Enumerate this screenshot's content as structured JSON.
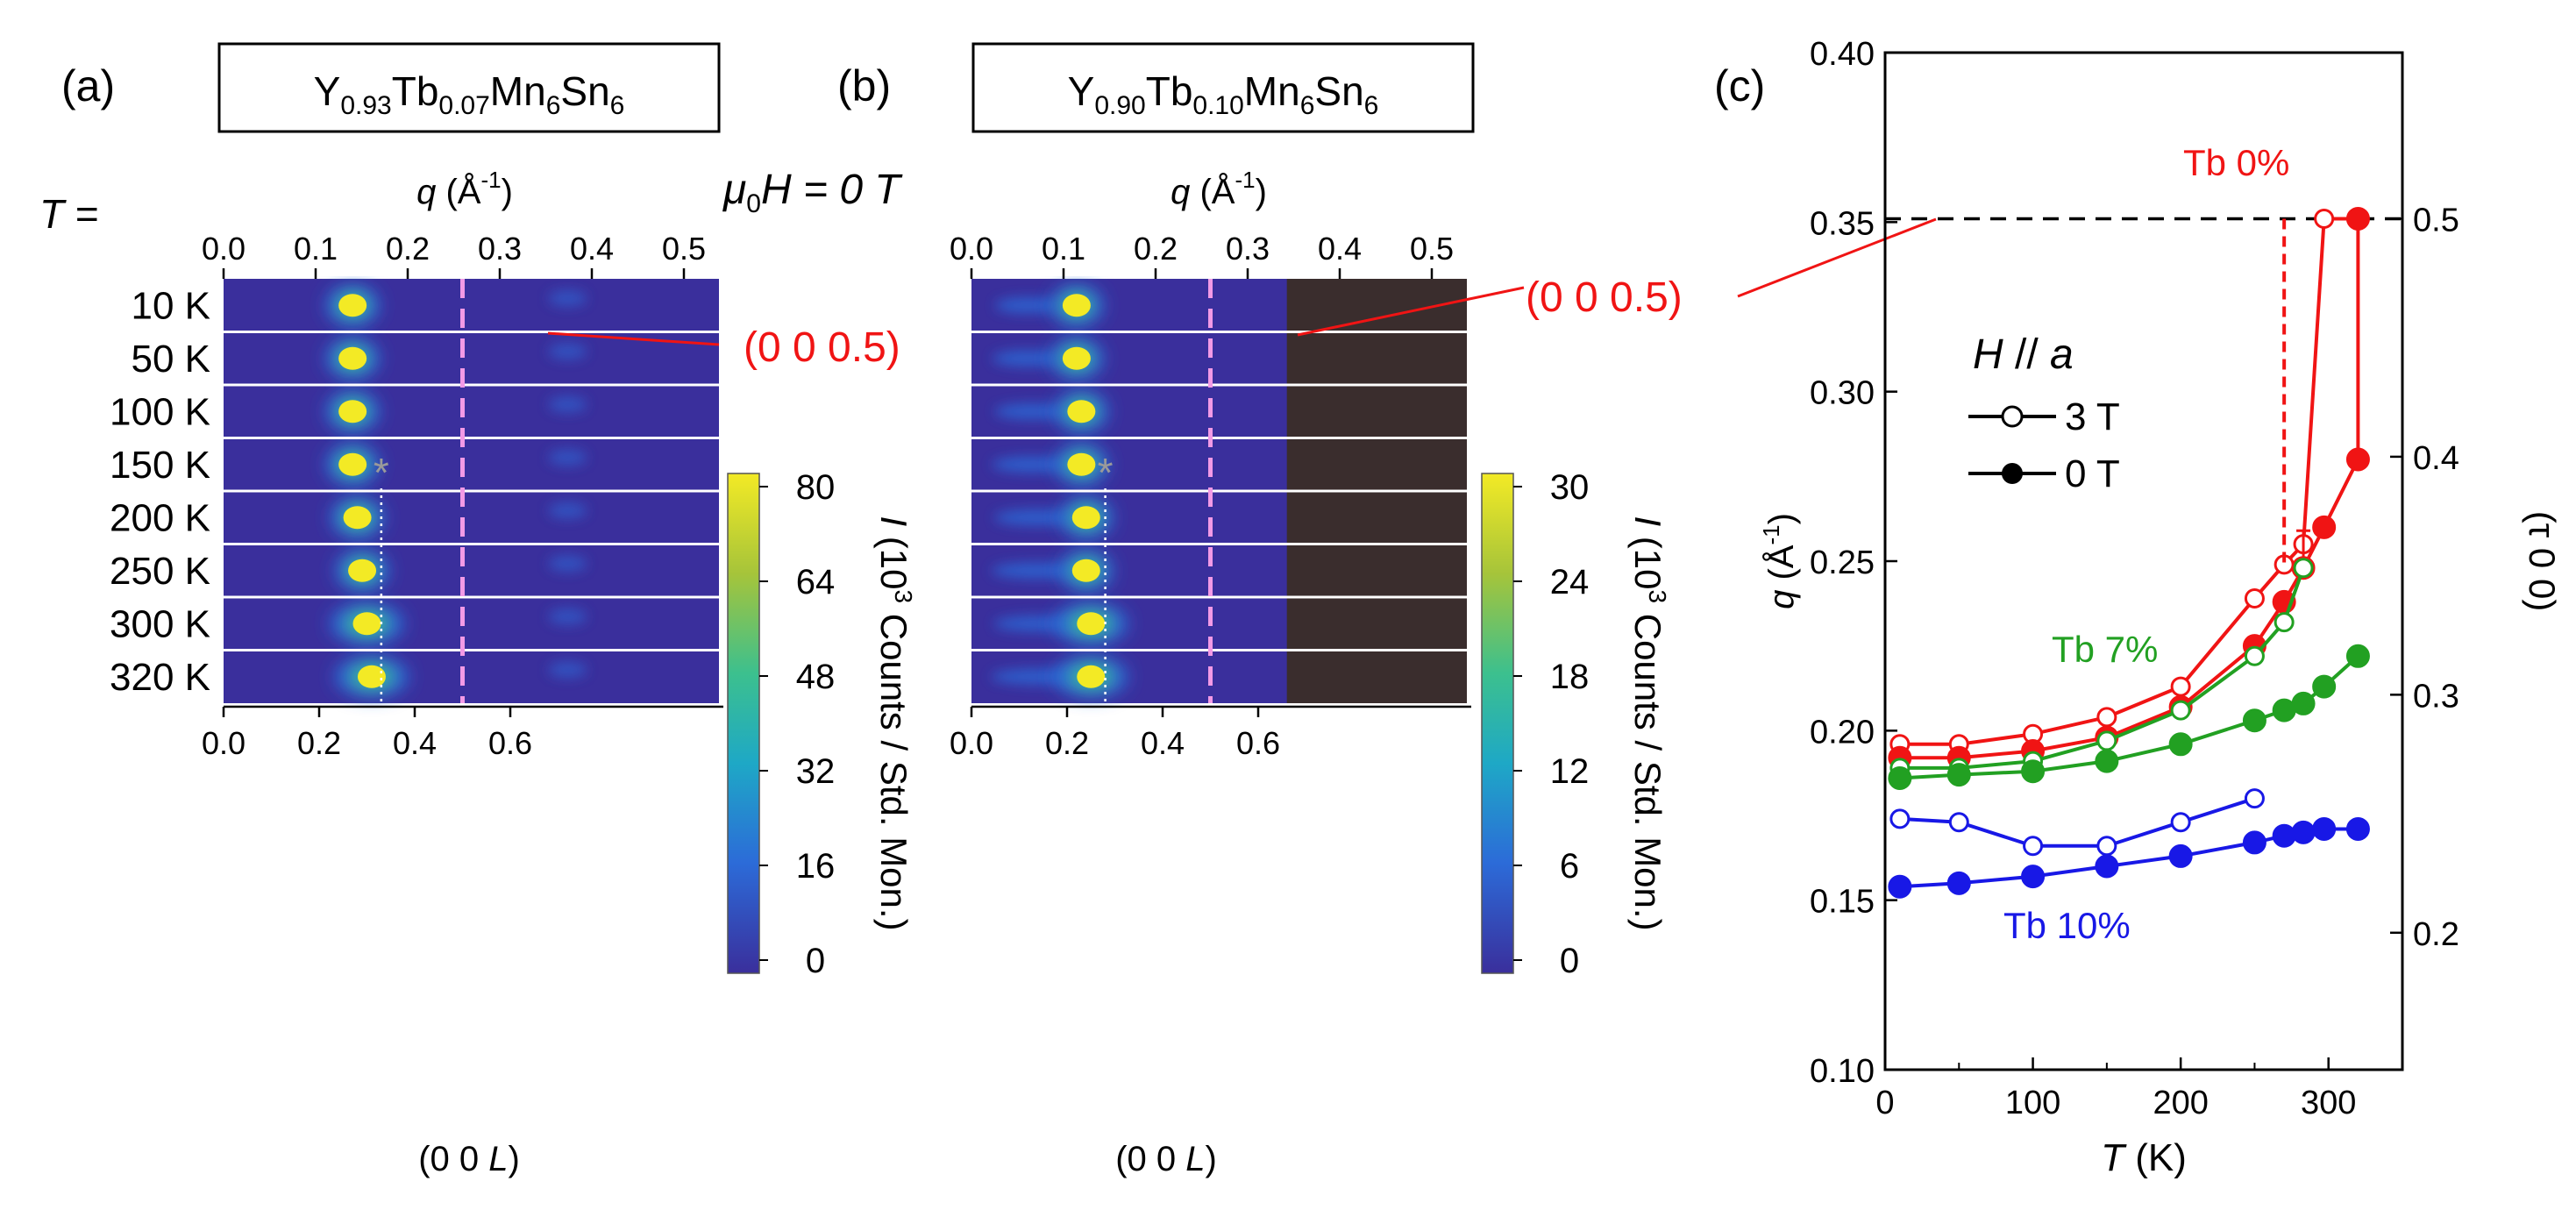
{
  "colors": {
    "heat_bg": "#3a2f9c",
    "peak": "#f3ea25",
    "dash_pink": "#f29ae6",
    "red": "#f01414",
    "green": "#22a022",
    "blue": "#1818e6",
    "dark_region": "#3a2d2d"
  },
  "colormap": [
    "#3a2f9c",
    "#2c6bd8",
    "#1ea8c6",
    "#3cc08e",
    "#a6c43a",
    "#f3ea25"
  ],
  "panel_a": {
    "label": "(a)",
    "composition": {
      "base": "Y",
      "sub1": "0.93",
      "el2": "Tb",
      "sub2": "0.07",
      "el3": "Mn",
      "sub3": "6",
      "el4": "Sn",
      "sub4": "6"
    },
    "top_axis_label": {
      "symbol": "q",
      "unit": "(Å",
      "exp": "-1",
      "close": ")"
    },
    "top_ticks": [
      "0.0",
      "0.1",
      "0.2",
      "0.3",
      "0.4",
      "0.5"
    ],
    "bottom_ticks": [
      "0.0",
      "0.2",
      "0.4",
      "0.6"
    ],
    "bottom_label": {
      "pre": "(0 0 ",
      "var": "L",
      "post": ")"
    },
    "colorbar_ticks": [
      "80",
      "64",
      "48",
      "32",
      "16",
      "0"
    ],
    "commensurate_label": "(0 0 0.5)",
    "peaks_L": [
      0.27,
      0.27,
      0.27,
      0.27,
      0.28,
      0.29,
      0.3,
      0.31
    ],
    "marker": "*"
  },
  "panel_b": {
    "label": "(b)",
    "composition": {
      "base": "Y",
      "sub1": "0.90",
      "el2": "Tb",
      "sub2": "0.10",
      "el3": "Mn",
      "sub3": "6",
      "el4": "Sn",
      "sub4": "6"
    },
    "top_axis_label": {
      "symbol": "q",
      "unit": "(Å",
      "exp": "-1",
      "close": ")"
    },
    "top_ticks": [
      "0.0",
      "0.1",
      "0.2",
      "0.3",
      "0.4",
      "0.5"
    ],
    "bottom_ticks": [
      "0.0",
      "0.2",
      "0.4",
      "0.6"
    ],
    "bottom_label": {
      "pre": "(0 0 ",
      "var": "L",
      "post": ")"
    },
    "colorbar_ticks": [
      "30",
      "24",
      "18",
      "12",
      "6",
      "0"
    ],
    "commensurate_label": "(0 0 0.5)",
    "peaks_L": [
      0.22,
      0.22,
      0.23,
      0.23,
      0.24,
      0.24,
      0.25,
      0.25
    ],
    "marker": "*"
  },
  "field_label": {
    "mu": "μ",
    "sub": "0",
    "rest": "H = 0 T"
  },
  "temperature_label": {
    "var": "T",
    "eq": " ="
  },
  "temperatures": [
    "10 K",
    "50 K",
    "100 K",
    "150 K",
    "200 K",
    "250 K",
    "300 K",
    "320 K"
  ],
  "colorbar_label": {
    "I": "I",
    "rest1": " (10",
    "exp": "3",
    "rest2": " Counts / Std. Mon.)"
  },
  "panel_c_label": "(c)",
  "chart_data": {
    "type": "line",
    "title": "",
    "xlabel": {
      "var": "T",
      "unit": " (K)"
    },
    "ylabel": {
      "var": "q",
      "unit": " (Å",
      "exp": "-1",
      "close": ")"
    },
    "y2label": "(τ 0 0)",
    "xlim": [
      0,
      350
    ],
    "ylim": [
      0.1,
      0.4
    ],
    "x_ticks": [
      "0",
      "100",
      "200",
      "300"
    ],
    "y_ticks": [
      "0.10",
      "0.15",
      "0.20",
      "0.25",
      "0.30",
      "0.35",
      "0.40"
    ],
    "y2_ticks": [
      "0.2",
      "0.3",
      "0.4",
      "0.5"
    ],
    "legend": {
      "title_var": "H",
      "title_rest": " // ",
      "title_axis": "a",
      "entries": [
        "3 T",
        "0 T"
      ]
    },
    "reference_line_q": 0.351,
    "series": [
      {
        "name": "Tb 0%",
        "field": "3 T",
        "color": "red",
        "filled": false,
        "x": [
          10,
          50,
          100,
          150,
          200,
          250,
          270,
          283,
          297,
          320
        ],
        "y": [
          0.196,
          0.196,
          0.199,
          0.204,
          0.213,
          0.239,
          0.249,
          0.255,
          0.351,
          0.351
        ]
      },
      {
        "name": "Tb 0%",
        "field": "0 T",
        "color": "red",
        "filled": true,
        "x": [
          10,
          50,
          100,
          150,
          200,
          250,
          270,
          283,
          297,
          320,
          320
        ],
        "y": [
          0.192,
          0.192,
          0.194,
          0.198,
          0.207,
          0.225,
          0.238,
          0.248,
          0.26,
          0.28,
          0.351
        ]
      },
      {
        "name": "Tb 7%",
        "field": "3 T",
        "color": "green",
        "filled": false,
        "x": [
          10,
          50,
          100,
          150,
          200,
          250,
          270,
          283
        ],
        "y": [
          0.189,
          0.189,
          0.191,
          0.197,
          0.206,
          0.222,
          0.232,
          0.248
        ]
      },
      {
        "name": "Tb 7%",
        "field": "0 T",
        "color": "green",
        "filled": true,
        "x": [
          10,
          50,
          100,
          150,
          200,
          250,
          270,
          283,
          297,
          320
        ],
        "y": [
          0.186,
          0.187,
          0.188,
          0.191,
          0.196,
          0.203,
          0.206,
          0.208,
          0.213,
          0.222
        ]
      },
      {
        "name": "Tb 10%",
        "field": "3 T",
        "color": "blue",
        "filled": false,
        "x": [
          10,
          50,
          100,
          150,
          200,
          250
        ],
        "y": [
          0.174,
          0.173,
          0.166,
          0.166,
          0.173,
          0.18
        ]
      },
      {
        "name": "Tb 10%",
        "field": "0 T",
        "color": "blue",
        "filled": true,
        "x": [
          10,
          50,
          100,
          150,
          200,
          250,
          270,
          283,
          297,
          320
        ],
        "y": [
          0.154,
          0.155,
          0.157,
          0.16,
          0.163,
          0.167,
          0.169,
          0.17,
          0.171,
          0.171
        ]
      }
    ],
    "series_labels": [
      {
        "text": "Tb 0%",
        "color": "red"
      },
      {
        "text": "Tb 7%",
        "color": "green"
      },
      {
        "text": "Tb 10%",
        "color": "blue"
      }
    ],
    "transition_T": 270,
    "errorbar": {
      "x": 283,
      "y": 0.255,
      "err": 0.004
    }
  }
}
